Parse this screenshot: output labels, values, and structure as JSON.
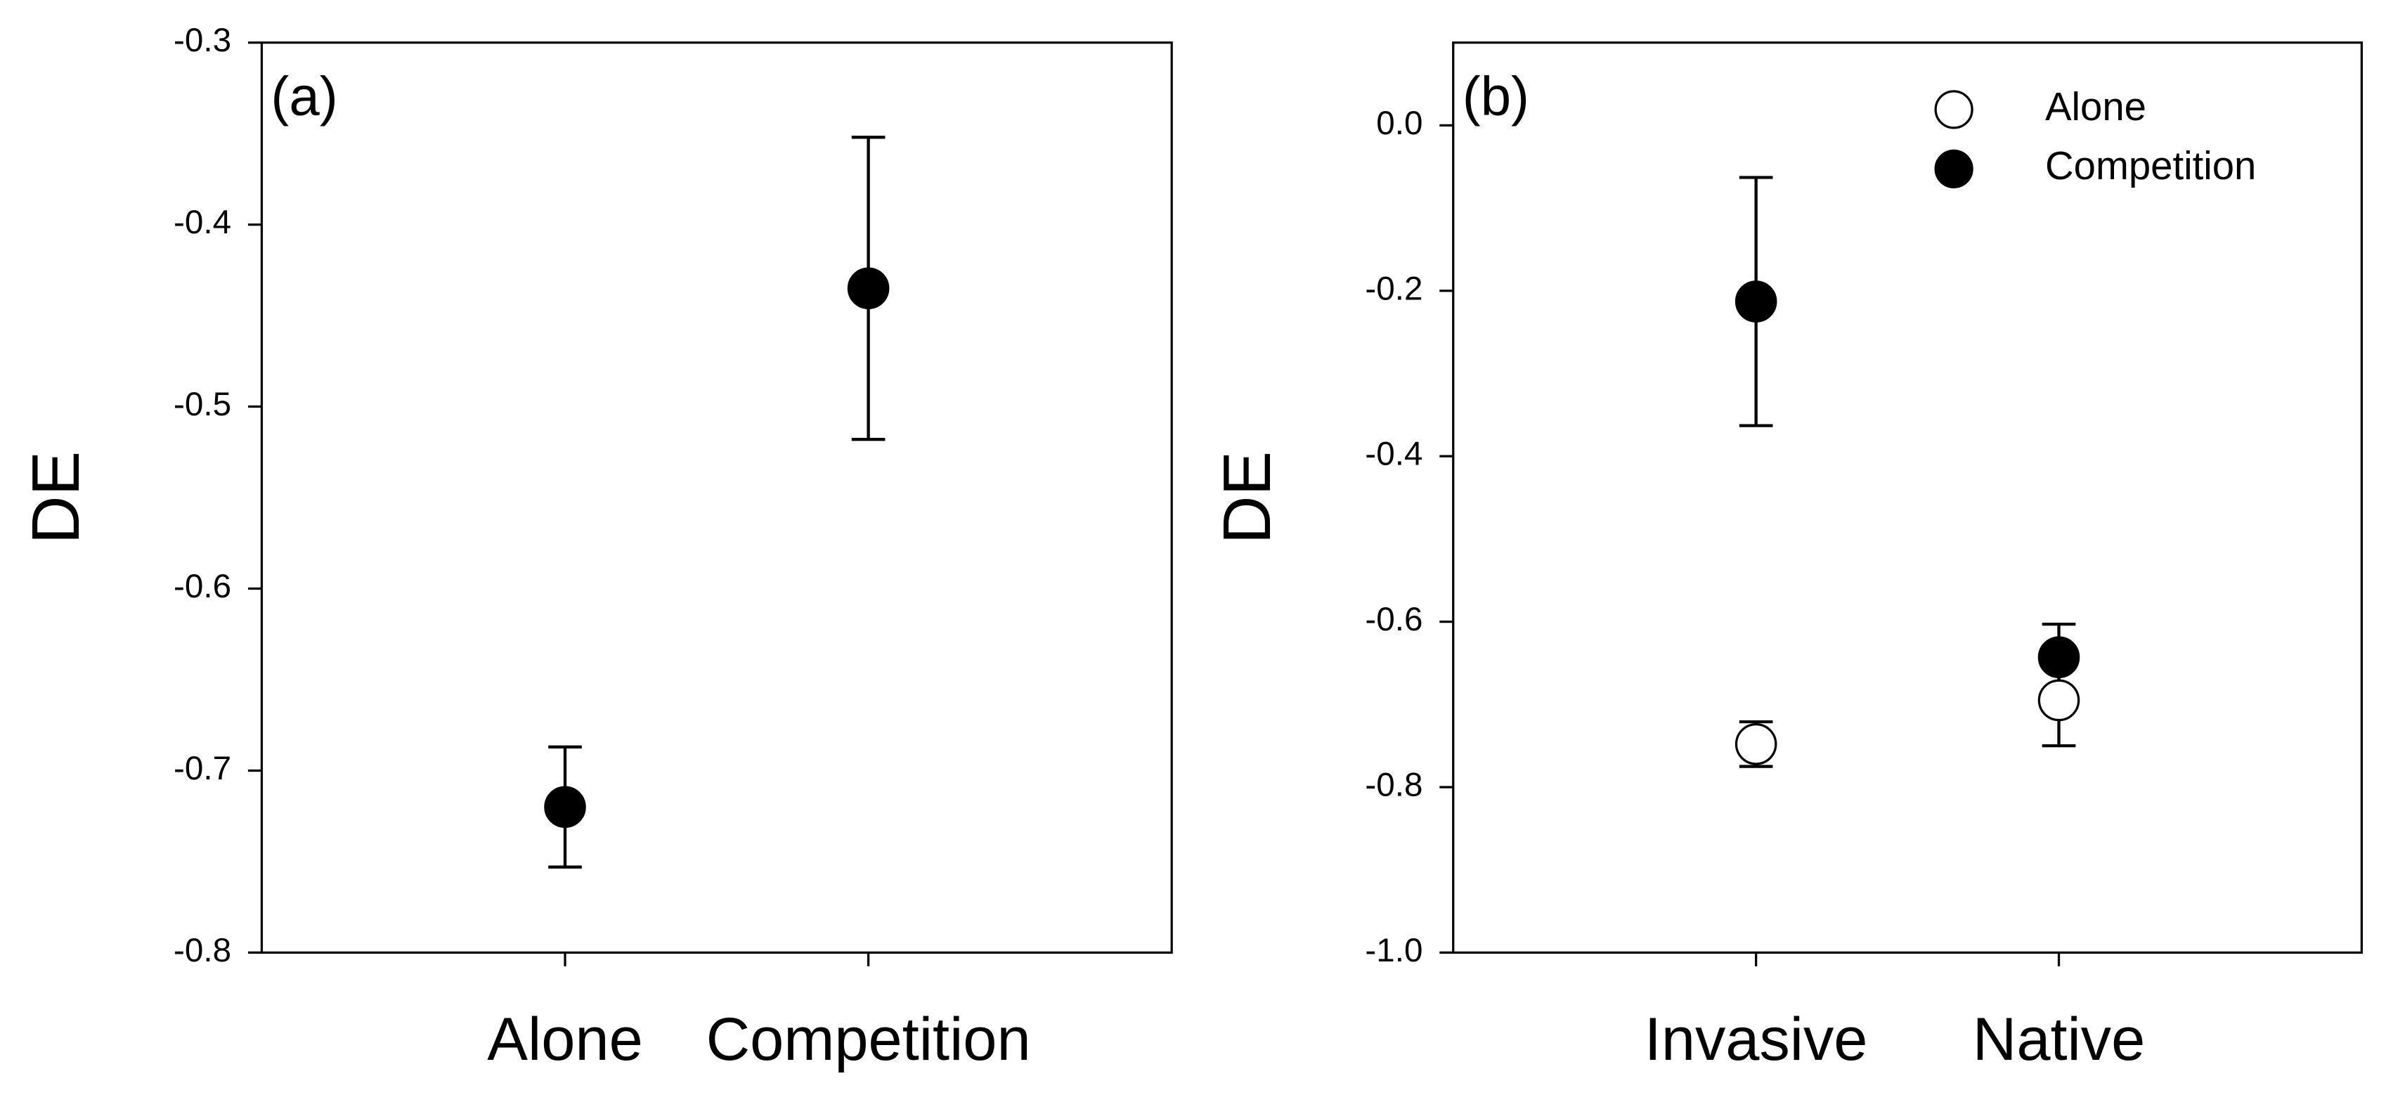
{
  "chart_data": [
    {
      "type": "scatter",
      "panel_label": "(a)",
      "y_label": "DE",
      "categories": [
        "Alone",
        "Competition"
      ],
      "ylim": [
        -0.8,
        -0.3
      ],
      "yticks": [
        -0.3,
        -0.4,
        -0.5,
        -0.6,
        -0.7,
        -0.8
      ],
      "series": [
        {
          "color": "#000000",
          "marker_fill": "#000000",
          "values": [
            -0.72,
            -0.435
          ],
          "errors": [
            0.033,
            0.083
          ]
        }
      ]
    },
    {
      "type": "scatter",
      "panel_label": "(b)",
      "y_label": "DE",
      "categories": [
        "Invasive",
        "Native"
      ],
      "ylim": [
        -1.0,
        0.1
      ],
      "yticks": [
        {
          "value": 0,
          "label": "0.0"
        },
        -0.2,
        -0.4,
        -0.6,
        -0.8,
        {
          "value": -1,
          "label": "-1.0"
        }
      ],
      "legend": "upper right",
      "series": [
        {
          "name": "Alone",
          "color": "#000000",
          "marker_fill": "#ffffff",
          "values": [
            -0.748,
            -0.695
          ],
          "errors": [
            0.027,
            0.055
          ]
        },
        {
          "name": "Competition",
          "color": "#000000",
          "marker_fill": "#000000",
          "values": [
            -0.213,
            -0.643
          ],
          "errors": [
            0.15,
            0.04
          ]
        }
      ]
    }
  ]
}
